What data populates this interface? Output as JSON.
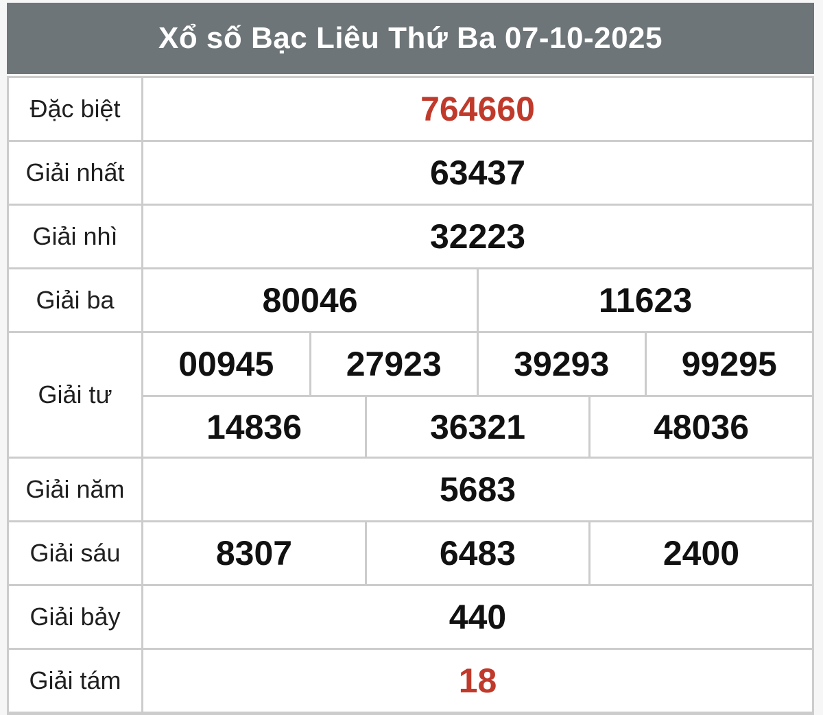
{
  "header": {
    "title": "Xổ số Bạc Liêu Thứ Ba 07-10-2025",
    "background": "#6d7578",
    "text_color": "#ffffff"
  },
  "colors": {
    "special_number": "#c03a2b",
    "normal_number": "#111111",
    "label_text": "#1f1f1f",
    "border": "#cccccc"
  },
  "results": {
    "rows": [
      {
        "label": "Đặc biệt",
        "special": true,
        "sub_rows": [
          [
            "764660"
          ]
        ]
      },
      {
        "label": "Giải nhất",
        "special": false,
        "sub_rows": [
          [
            "63437"
          ]
        ]
      },
      {
        "label": "Giải nhì",
        "special": false,
        "sub_rows": [
          [
            "32223"
          ]
        ]
      },
      {
        "label": "Giải ba",
        "special": false,
        "sub_rows": [
          [
            "80046",
            "11623"
          ]
        ]
      },
      {
        "label": "Giải tư",
        "special": false,
        "sub_rows": [
          [
            "00945",
            "27923",
            "39293",
            "99295"
          ],
          [
            "14836",
            "36321",
            "48036"
          ]
        ]
      },
      {
        "label": "Giải năm",
        "special": false,
        "sub_rows": [
          [
            "5683"
          ]
        ]
      },
      {
        "label": "Giải sáu",
        "special": false,
        "sub_rows": [
          [
            "8307",
            "6483",
            "2400"
          ]
        ]
      },
      {
        "label": "Giải bảy",
        "special": false,
        "sub_rows": [
          [
            "440"
          ]
        ]
      },
      {
        "label": "Giải tám",
        "special": true,
        "sub_rows": [
          [
            "18"
          ]
        ]
      }
    ]
  }
}
